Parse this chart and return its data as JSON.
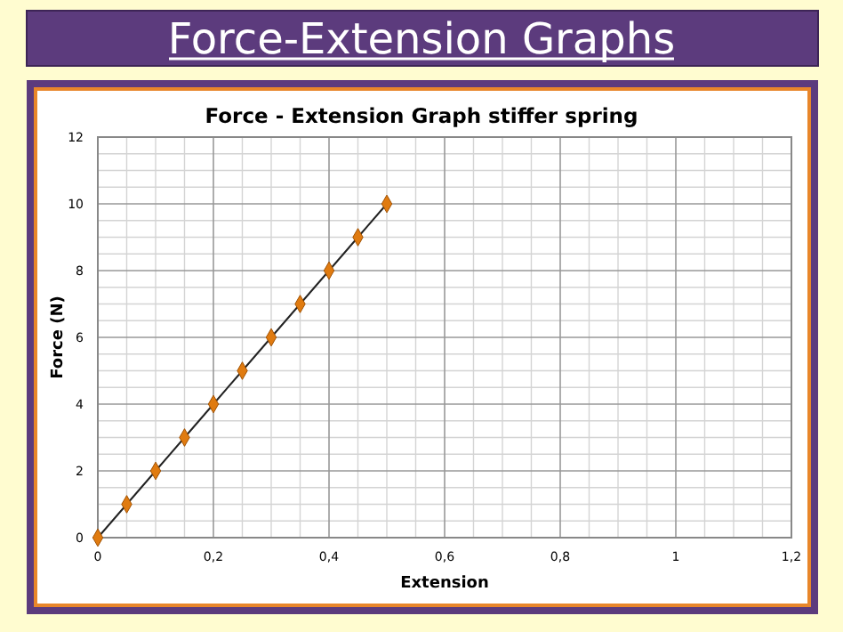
{
  "chart_data": {
    "type": "line",
    "title": "Force-Extension Graphs",
    "subtitle": "Force - Extension Graph stiffer spring",
    "xlabel": "Extension",
    "ylabel": "Force (N)",
    "x": [
      0,
      0.05,
      0.1,
      0.15,
      0.2,
      0.25,
      0.3,
      0.35,
      0.4,
      0.45,
      0.5
    ],
    "series": [
      {
        "color": "#e07b10",
        "values": [
          0,
          1,
          2,
          3,
          4,
          5,
          6,
          7,
          8,
          9,
          10
        ]
      }
    ],
    "xlim": [
      0,
      1.2
    ],
    "xticks": [
      0,
      {
        "value": 0.2,
        "label": "0,2"
      },
      {
        "value": 0.4,
        "label": "0,4"
      },
      {
        "value": 0.6,
        "label": "0,6"
      },
      {
        "value": 0.8,
        "label": "0,8"
      },
      1,
      {
        "value": 1.2,
        "label": "1,2"
      }
    ],
    "ylim": [
      0,
      12
    ],
    "yticks": [
      0,
      2,
      4,
      6,
      8,
      10,
      12
    ],
    "grid": true,
    "marker": "diamond"
  }
}
